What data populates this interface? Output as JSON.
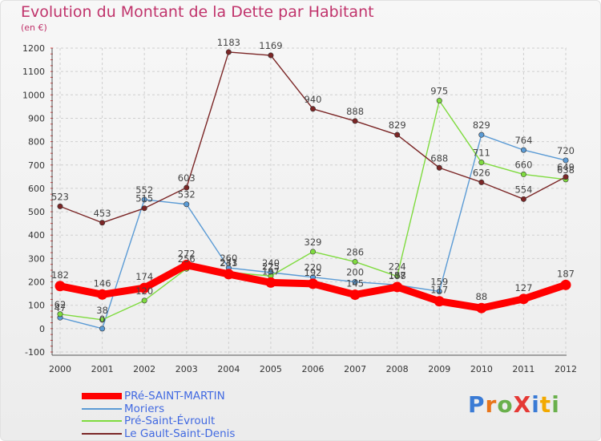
{
  "title": "Evolution du Montant de la Dette par Habitant",
  "subtitle": "(en €)",
  "logo": {
    "text": "ProXiti",
    "colors": [
      "#3a7bd5",
      "#e8751a",
      "#6ab04c",
      "#e53935",
      "#3a7bd5",
      "#f2a900",
      "#6ab04c"
    ]
  },
  "chart_data": {
    "type": "line",
    "x": [
      2000,
      2001,
      2002,
      2003,
      2004,
      2005,
      2006,
      2007,
      2008,
      2009,
      2010,
      2011,
      2012
    ],
    "ylim": [
      -100,
      1200
    ],
    "yticks": [
      -100,
      0,
      100,
      200,
      300,
      400,
      500,
      600,
      700,
      800,
      900,
      1000,
      1100,
      1200
    ],
    "grid": true,
    "legend_position": "bottom-left",
    "series": [
      {
        "name": "PRé-SAINT-MARTIN",
        "color": "#ff0000",
        "values": [
          182,
          146,
          174,
          272,
          233,
          197,
          192,
          145,
          178,
          117,
          88,
          127,
          187
        ]
      },
      {
        "name": "Moriers",
        "color": "#5b9bd5",
        "values": [
          47,
          0,
          552,
          532,
          260,
          240,
          220,
          200,
          187,
          159,
          829,
          764,
          720
        ]
      },
      {
        "name": "Pré-Saint-Évroult",
        "color": "#7fdb3f",
        "values": [
          62,
          38,
          120,
          256,
          241,
          225,
          329,
          286,
          224,
          975,
          711,
          660,
          638
        ]
      },
      {
        "name": "Le Gault-Saint-Denis",
        "color": "#7b2626",
        "values": [
          523,
          453,
          515,
          603,
          1183,
          1169,
          940,
          888,
          829,
          688,
          626,
          554,
          649
        ]
      }
    ]
  }
}
